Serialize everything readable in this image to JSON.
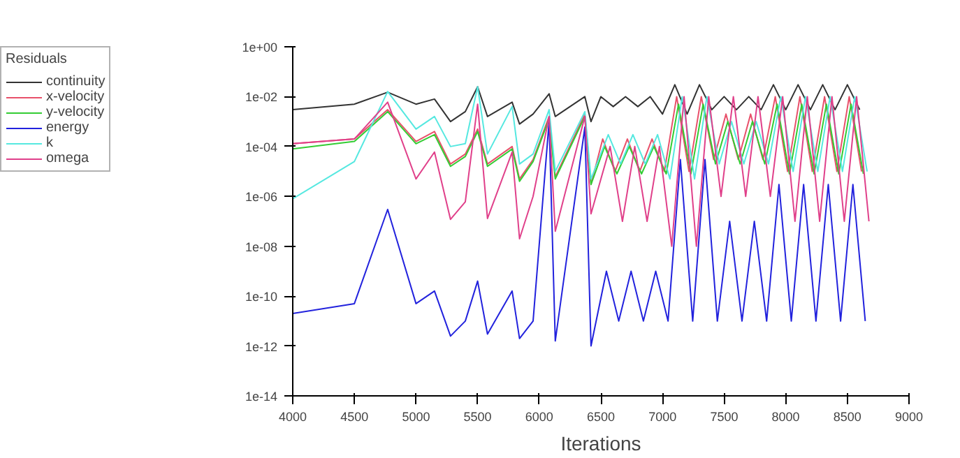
{
  "chart_data": {
    "type": "line",
    "xlabel": "Iterations",
    "legend_title": "Residuals",
    "legend": "top left",
    "grid": false,
    "log": "y",
    "xlim": [
      4000,
      9000
    ],
    "xticks": [
      4000,
      4500,
      5000,
      5500,
      6000,
      6500,
      7000,
      7500,
      8000,
      8500,
      9000
    ],
    "ylim": [
      1e-14,
      1
    ],
    "yticks": [
      {
        "value": 1e-14,
        "label": "1e-14"
      },
      {
        "value": 1e-12,
        "label": "1e-12"
      },
      {
        "value": 1e-10,
        "label": "1e-10"
      },
      {
        "value": 1e-08,
        "label": "1e-08"
      },
      {
        "value": 1e-06,
        "label": "1e-06"
      },
      {
        "value": 0.0001,
        "label": "1e-04"
      },
      {
        "value": 0.01,
        "label": "1e-02"
      },
      {
        "value": 1,
        "label": "1e+00"
      }
    ],
    "series": [
      {
        "name": "continuity",
        "color": "#333333",
        "x": [
          4000,
          4500,
          4770,
          5000,
          5150,
          5280,
          5400,
          5500,
          5580,
          5780,
          5840,
          5950,
          6080,
          6130,
          6370,
          6420,
          6500,
          6600,
          6700,
          6800,
          6900,
          7000,
          7100,
          7200,
          7300,
          7400,
          7500,
          7600,
          7700,
          7800,
          7900,
          8000,
          8100,
          8200,
          8300,
          8400,
          8500,
          8600
        ],
        "values": [
          0.003,
          0.005,
          0.015,
          0.005,
          0.008,
          0.001,
          0.0025,
          0.025,
          0.0016,
          0.006,
          0.0008,
          0.002,
          0.013,
          0.0016,
          0.01,
          0.001,
          0.01,
          0.004,
          0.01,
          0.004,
          0.01,
          0.002,
          0.03,
          0.002,
          0.03,
          0.003,
          0.01,
          0.003,
          0.01,
          0.003,
          0.03,
          0.003,
          0.03,
          0.003,
          0.03,
          0.003,
          0.03,
          0.003
        ]
      },
      {
        "name": "x-velocity",
        "color": "#e8506a",
        "x": [
          4000,
          4500,
          4770,
          5000,
          5150,
          5280,
          5400,
          5500,
          5580,
          5780,
          5840,
          5950,
          6080,
          6130,
          6370,
          6420,
          6515,
          6615,
          6715,
          6815,
          6915,
          7015,
          7115,
          7215,
          7315,
          7415,
          7515,
          7615,
          7715,
          7815,
          7915,
          8015,
          8115,
          8215,
          8315,
          8415,
          8515,
          8615
        ],
        "values": [
          0.00013,
          0.0002,
          0.003,
          0.00016,
          0.0004,
          2e-05,
          5e-05,
          0.0005,
          2e-05,
          0.0001,
          5e-06,
          3e-05,
          0.0016,
          6e-06,
          0.002,
          3e-06,
          0.0002,
          1e-05,
          0.0002,
          1e-05,
          0.0002,
          1e-05,
          0.01,
          1e-05,
          0.01,
          3e-05,
          0.002,
          3e-05,
          0.002,
          3e-05,
          0.01,
          1e-05,
          0.01,
          1e-05,
          0.01,
          1e-05,
          0.01,
          1e-05
        ]
      },
      {
        "name": "y-velocity",
        "color": "#33cc33",
        "x": [
          4000,
          4500,
          4770,
          5000,
          5150,
          5280,
          5400,
          5500,
          5580,
          5780,
          5840,
          5950,
          6080,
          6130,
          6370,
          6420,
          6530,
          6630,
          6730,
          6830,
          6930,
          7030,
          7130,
          7230,
          7330,
          7430,
          7530,
          7630,
          7730,
          7830,
          7930,
          8030,
          8130,
          8230,
          8330,
          8430,
          8530,
          8630
        ],
        "values": [
          8e-05,
          0.00016,
          0.0025,
          0.00013,
          0.0003,
          1.6e-05,
          4e-05,
          0.0004,
          1.6e-05,
          8e-05,
          4e-06,
          2.5e-05,
          0.0013,
          5e-06,
          0.0016,
          3e-06,
          0.0001,
          8e-06,
          0.0001,
          8e-06,
          0.0001,
          8e-06,
          0.005,
          8e-06,
          0.005,
          2e-05,
          0.001,
          2e-05,
          0.001,
          2e-05,
          0.005,
          8e-06,
          0.005,
          8e-06,
          0.005,
          8e-06,
          0.005,
          8e-06
        ]
      },
      {
        "name": "energy",
        "color": "#2222dd",
        "x": [
          4000,
          4500,
          4770,
          5000,
          5150,
          5280,
          5400,
          5500,
          5580,
          5780,
          5840,
          5950,
          6080,
          6130,
          6370,
          6420,
          6545,
          6645,
          6745,
          6845,
          6945,
          7045,
          7145,
          7245,
          7345,
          7445,
          7545,
          7645,
          7745,
          7845,
          7945,
          8045,
          8145,
          8245,
          8345,
          8445,
          8545,
          8645
        ],
        "values": [
          2e-11,
          5e-11,
          3e-07,
          5e-11,
          1.6e-10,
          2.5e-12,
          1e-11,
          4e-10,
          3e-12,
          1.6e-10,
          2e-12,
          1e-11,
          0.001,
          1.6e-12,
          0.0006,
          1e-12,
          1e-09,
          1e-11,
          1e-09,
          1e-11,
          1e-09,
          1e-11,
          3e-05,
          1e-11,
          3e-05,
          1e-11,
          1e-07,
          1e-11,
          1e-07,
          1e-11,
          3e-06,
          1e-11,
          3e-06,
          1e-11,
          3e-06,
          1e-11,
          3e-06,
          1e-11
        ]
      },
      {
        "name": "k",
        "color": "#55e8e0",
        "x": [
          4000,
          4500,
          4770,
          5000,
          5150,
          5280,
          5400,
          5500,
          5580,
          5780,
          5840,
          5950,
          6080,
          6130,
          6370,
          6420,
          6560,
          6660,
          6760,
          6860,
          6960,
          7060,
          7160,
          7260,
          7360,
          7460,
          7560,
          7660,
          7760,
          7860,
          7960,
          8060,
          8160,
          8260,
          8360,
          8460,
          8560,
          8660
        ],
        "values": [
          8e-07,
          2.5e-05,
          0.016,
          0.0005,
          0.0016,
          0.0001,
          0.00013,
          0.025,
          5e-05,
          0.004,
          2e-05,
          5e-05,
          0.003,
          1e-05,
          0.0025,
          5e-06,
          0.0003,
          2e-05,
          0.0003,
          2e-05,
          0.0003,
          5e-06,
          0.01,
          5e-06,
          0.01,
          2e-05,
          0.001,
          2e-05,
          0.001,
          2e-05,
          0.01,
          1e-05,
          0.01,
          1e-05,
          0.01,
          1e-05,
          0.01,
          1e-05
        ]
      },
      {
        "name": "omega",
        "color": "#e0408a",
        "x": [
          4000,
          4500,
          4770,
          5000,
          5150,
          5280,
          5400,
          5500,
          5580,
          5780,
          5840,
          5950,
          6080,
          6130,
          6370,
          6420,
          6575,
          6675,
          6775,
          6875,
          6975,
          7075,
          7175,
          7275,
          7375,
          7475,
          7575,
          7675,
          7775,
          7875,
          7975,
          8075,
          8175,
          8275,
          8375,
          8475,
          8575,
          8675
        ],
        "values": [
          0.00013,
          0.0002,
          0.006,
          5e-06,
          6e-05,
          1.2e-07,
          6e-07,
          0.005,
          1.3e-07,
          6e-05,
          2e-08,
          1e-06,
          0.0016,
          4e-08,
          0.0016,
          2e-07,
          0.0001,
          1e-07,
          0.0001,
          1e-07,
          0.0001,
          1e-08,
          0.01,
          1e-08,
          0.01,
          1e-06,
          0.01,
          1e-06,
          0.01,
          1e-06,
          0.01,
          1e-07,
          0.01,
          1e-07,
          0.01,
          1e-07,
          0.01,
          1e-07
        ]
      }
    ]
  }
}
